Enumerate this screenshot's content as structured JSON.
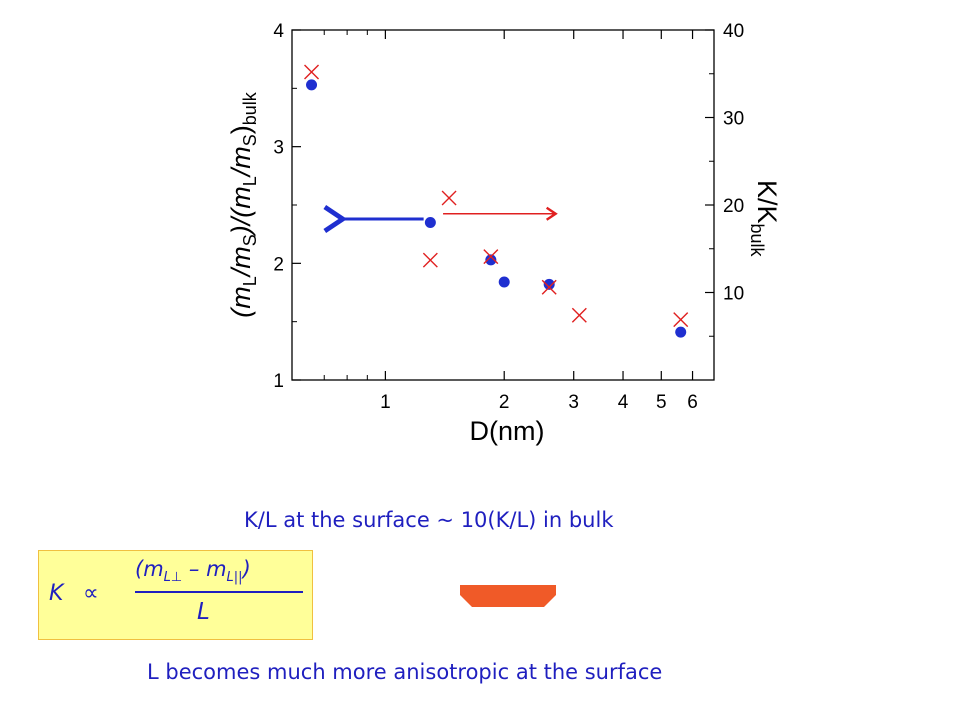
{
  "chart_data": {
    "type": "scatter",
    "xlabel": "D(nm)",
    "ylabel_left_parts": [
      "(m",
      "L",
      "/m",
      "S",
      ")/(m",
      "L",
      "/m",
      "S",
      ")",
      "bulk"
    ],
    "ylabel_right_parts": [
      "K/K",
      "bulk"
    ],
    "x_scale": "log",
    "xlim": [
      0.58,
      6.8
    ],
    "x_ticks": [
      {
        "value": 1,
        "label": "1"
      },
      {
        "value": 2,
        "label": "2"
      },
      {
        "value": 3,
        "label": "3"
      },
      {
        "value": 4,
        "label": "4"
      },
      {
        "value": 5,
        "label": "5"
      },
      {
        "value": 6,
        "label": "6"
      }
    ],
    "ylim_left": [
      1,
      4
    ],
    "y_ticks_left": [
      {
        "value": 1,
        "label": "1"
      },
      {
        "value": 2,
        "label": "2"
      },
      {
        "value": 3,
        "label": "3"
      },
      {
        "value": 4,
        "label": "4"
      }
    ],
    "ylim_right": [
      0,
      40
    ],
    "y_ticks_right": [
      {
        "value": 10,
        "label": "10"
      },
      {
        "value": 20,
        "label": "20"
      },
      {
        "value": 30,
        "label": "30"
      },
      {
        "value": 40,
        "label": "40"
      }
    ],
    "series": [
      {
        "axis": "left",
        "marker": "circle",
        "color": "#1f2fd0",
        "points": [
          [
            0.65,
            3.53
          ],
          [
            1.3,
            2.35
          ],
          [
            1.85,
            2.03
          ],
          [
            2.0,
            1.84
          ],
          [
            2.6,
            1.82
          ],
          [
            5.6,
            1.41
          ]
        ]
      },
      {
        "axis": "right",
        "marker": "x",
        "color": "#e02020",
        "points": [
          [
            0.65,
            35.2
          ],
          [
            1.3,
            13.7
          ],
          [
            1.45,
            20.8
          ],
          [
            1.85,
            14.1
          ],
          [
            2.6,
            10.6
          ],
          [
            3.1,
            7.4
          ],
          [
            5.6,
            6.9
          ]
        ]
      }
    ],
    "annotations": [
      {
        "type": "arrow",
        "color": "#1f2fd0",
        "direction": "left",
        "from": [
          1.25,
          2.38
        ],
        "to": [
          0.78,
          2.38
        ]
      },
      {
        "type": "arrow",
        "color": "#e02020",
        "direction": "right",
        "from": [
          1.4,
          19.0
        ],
        "to": [
          2.7,
          19.0
        ]
      }
    ]
  },
  "captions": {
    "line1": "K/L at the surface ~ 10(K/L) in bulk",
    "line2": "L becomes much more anisotropic at the surface"
  },
  "formula": {
    "k": "K",
    "proportional": "∝",
    "numerator_open": "(m",
    "sub_perp": "L⊥",
    "minus": " – m",
    "sub_par": "L||",
    "numerator_close": ")",
    "denominator": "L"
  },
  "colors": {
    "caption_text": "#1f1fbf",
    "formula_background": "#ffff99",
    "down_arrow": "#f05a28"
  }
}
